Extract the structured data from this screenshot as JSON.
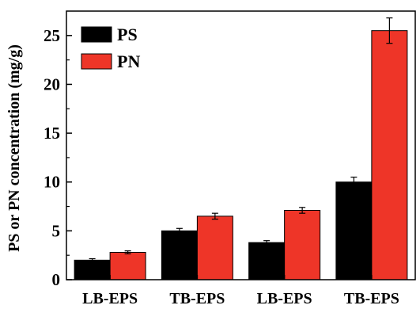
{
  "chart_data": {
    "type": "bar",
    "categories": [
      "LB-EPS",
      "TB-EPS",
      "LB-EPS",
      "TB-EPS"
    ],
    "series": [
      {
        "name": "PS",
        "color": "#000000",
        "values": [
          2.0,
          5.0,
          3.8,
          10.0
        ],
        "errors": [
          0.15,
          0.25,
          0.2,
          0.5
        ]
      },
      {
        "name": "PN",
        "color": "#ee3528",
        "values": [
          2.8,
          6.5,
          7.1,
          25.5
        ],
        "errors": [
          0.15,
          0.3,
          0.3,
          1.3
        ]
      }
    ],
    "title": "",
    "xlabel": "",
    "ylabel": "PS or PN concentration (mg/g)",
    "ylim": [
      0,
      27.5
    ],
    "yticks": [
      "0",
      "5",
      "10",
      "15",
      "20",
      "25"
    ],
    "grid": false,
    "legend_position": "top-left"
  }
}
